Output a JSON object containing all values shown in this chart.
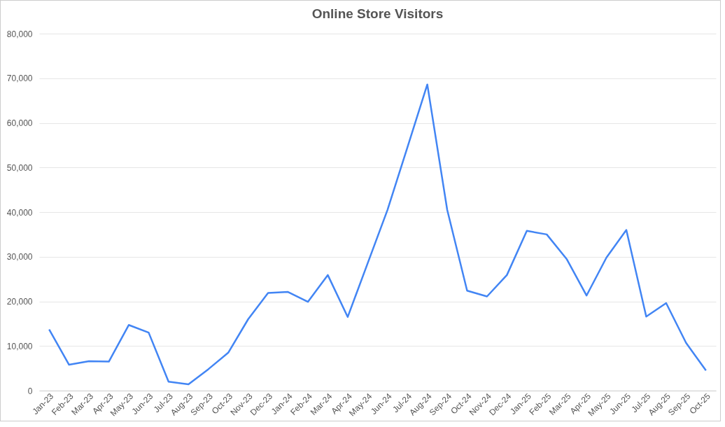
{
  "chart_data": {
    "type": "line",
    "title": "Online Store Visitors",
    "categories": [
      "Jan-23",
      "Feb-23",
      "Mar-23",
      "Apr-23",
      "May-23",
      "Jun-23",
      "Jul-23",
      "Aug-23",
      "Sep-23",
      "Oct-23",
      "Nov-23",
      "Dec-23",
      "Jan-24",
      "Feb-24",
      "Mar-24",
      "Apr-24",
      "May-24",
      "Jun-24",
      "Jul-24",
      "Aug-24",
      "Sep-24",
      "Oct-24",
      "Nov-24",
      "Dec-24",
      "Jan-25",
      "Feb-25",
      "Mar-25",
      "Apr-25",
      "May-25",
      "Jun-25",
      "Jul-25",
      "Aug-25",
      "Sep-25",
      "Oct-25"
    ],
    "series": [
      {
        "color": "#4285f4",
        "values": [
          13700,
          5800,
          6600,
          6500,
          14700,
          13000,
          2000,
          1400,
          4800,
          8500,
          16000,
          21900,
          22100,
          19900,
          25900,
          16500,
          28500,
          40500,
          54500,
          68600,
          40500,
          22400,
          21100,
          25900,
          35800,
          35000,
          29500,
          21300,
          29800,
          36000,
          16600,
          19600,
          10700,
          4500
        ]
      }
    ],
    "ylim": [
      0,
      80000
    ],
    "yticks": [
      0,
      {
        "value": 10000,
        "label": "10,000"
      },
      {
        "value": 20000,
        "label": "20,000"
      },
      {
        "value": 30000,
        "label": "30,000"
      },
      {
        "value": 40000,
        "label": "40,000"
      },
      {
        "value": 50000,
        "label": "50,000"
      },
      {
        "value": 60000,
        "label": "60,000"
      },
      {
        "value": 70000,
        "label": "70,000"
      },
      {
        "value": 80000,
        "label": "80,000"
      }
    ],
    "grid": "y",
    "legend": false,
    "marker": "none",
    "line_style": "solid"
  }
}
